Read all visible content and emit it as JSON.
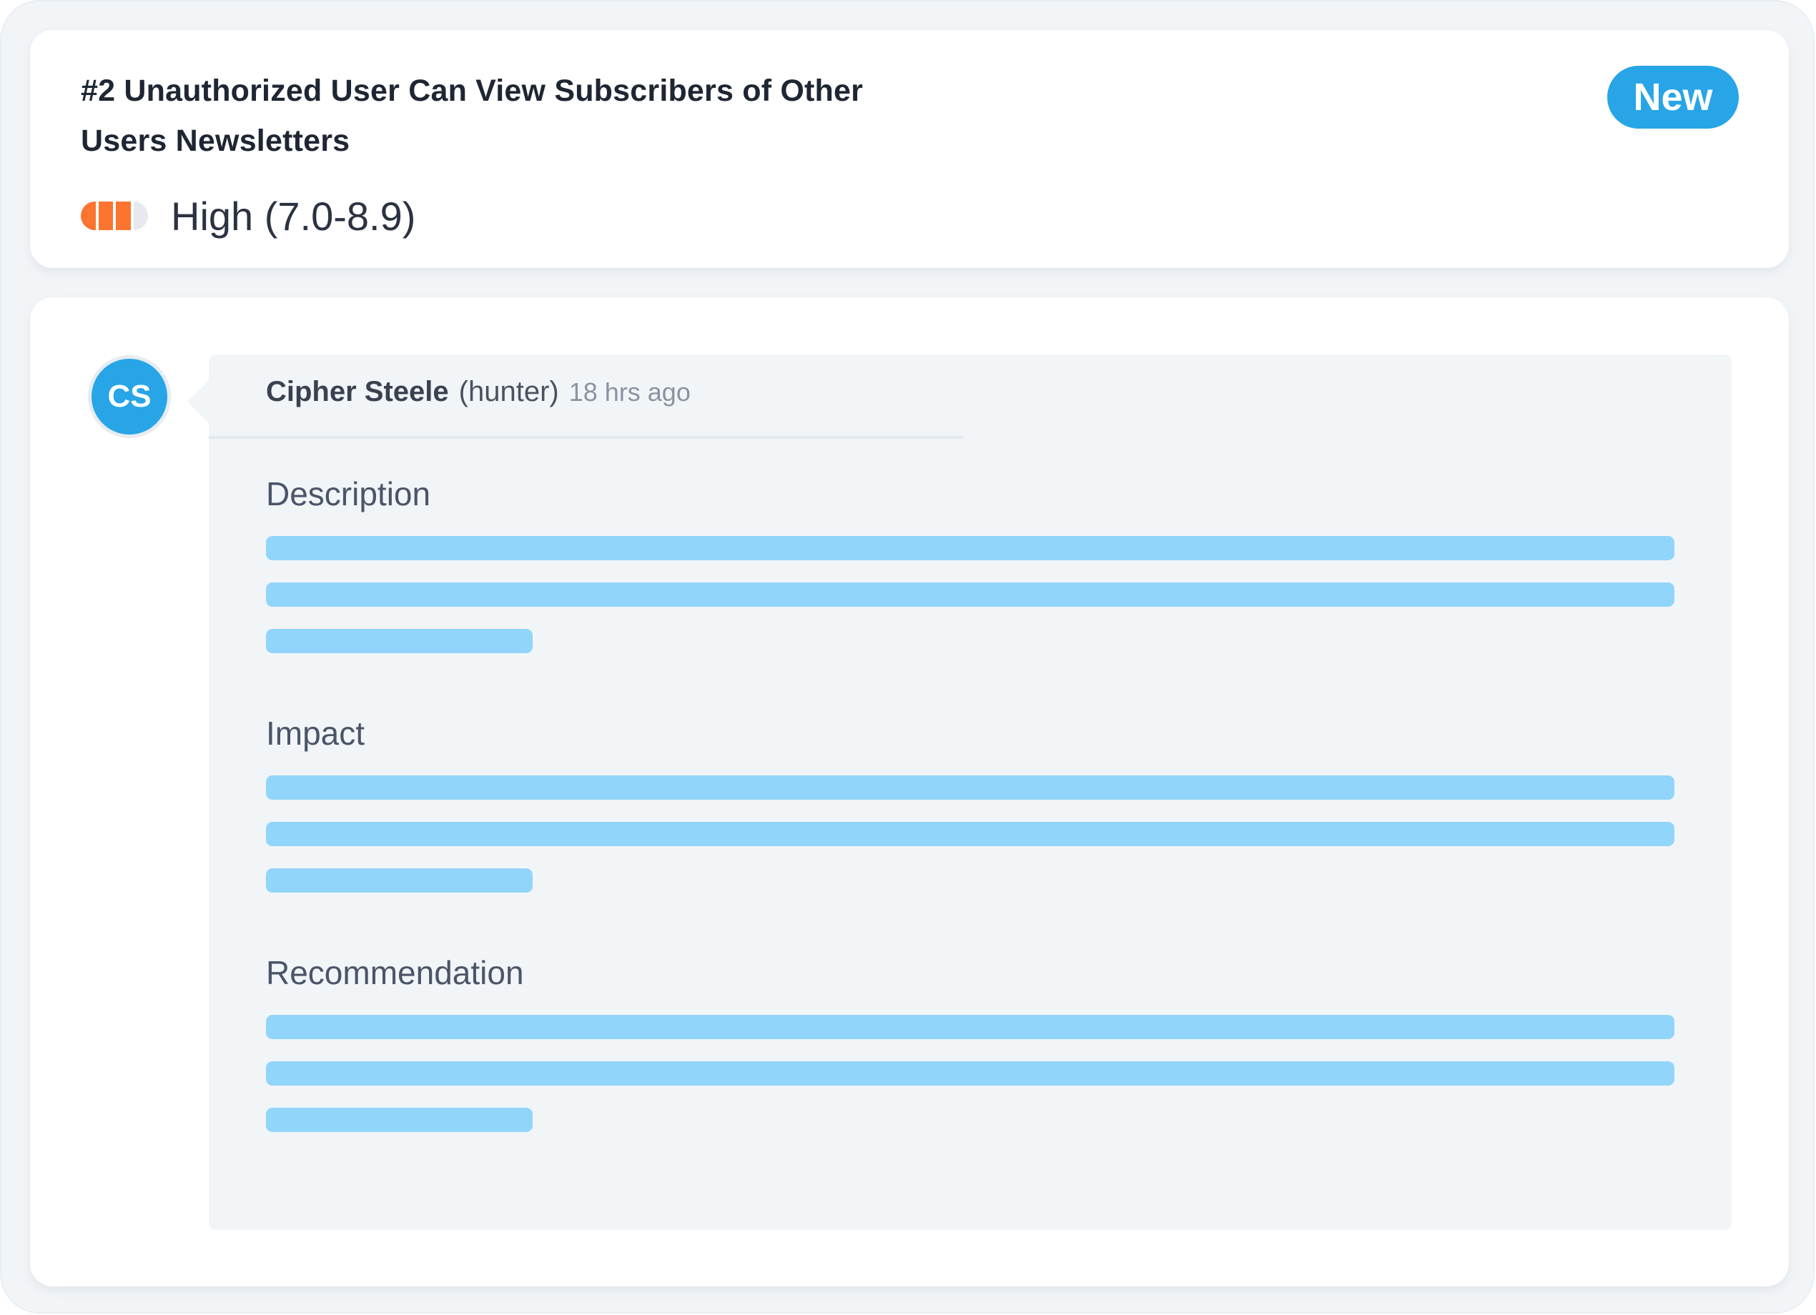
{
  "report": {
    "title": "#2 Unauthorized User Can View Subscribers of Other Users Newsletters",
    "status_badge": "New",
    "severity": {
      "label": "High (7.0-8.9)",
      "level_filled": 3,
      "level_total": 4,
      "color": "#fb7430"
    }
  },
  "comment": {
    "avatar_initials": "CS",
    "author": "Cipher Steele",
    "role": "(hunter)",
    "time": "18 hrs ago",
    "sections": [
      {
        "heading": "Description"
      },
      {
        "heading": "Impact"
      },
      {
        "heading": "Recommendation"
      }
    ]
  },
  "colors": {
    "accent": "#27a5e7",
    "placeholder_line": "#92d5fa",
    "background": "#f2f5f8"
  }
}
